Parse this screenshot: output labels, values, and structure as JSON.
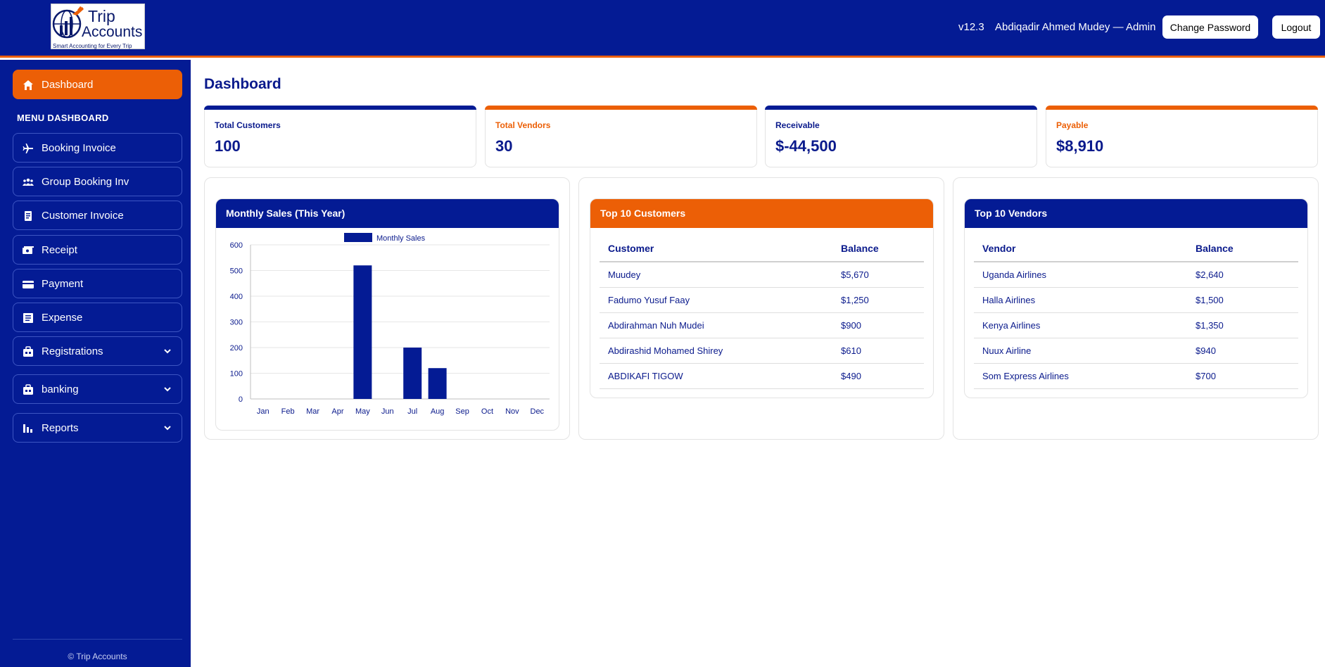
{
  "header": {
    "logo": {
      "line1": "Trip",
      "line2": "Accounts",
      "tagline": "Smart Accounting for Every Trip"
    },
    "version": "v12.3",
    "user": "Abdiqadir Ahmed Mudey — Admin",
    "change_password": "Change Password",
    "logout": "Logout"
  },
  "sidebar": {
    "active_item": "Dashboard",
    "menu_title": "MENU DASHBOARD",
    "items": [
      {
        "label": "Booking Invoice",
        "icon": "plane-icon"
      },
      {
        "label": "Group Booking Inv",
        "icon": "group-icon"
      },
      {
        "label": "Customer Invoice",
        "icon": "invoice-icon"
      },
      {
        "label": "Receipt",
        "icon": "receipt-icon"
      },
      {
        "label": "Payment",
        "icon": "card-icon"
      },
      {
        "label": "Expense",
        "icon": "expense-icon"
      },
      {
        "label": "Registrations",
        "icon": "briefcase-icon",
        "expandable": true
      },
      {
        "label": "banking",
        "icon": "bank-icon",
        "expandable": true
      },
      {
        "label": "Reports",
        "icon": "chart-icon",
        "expandable": true
      }
    ],
    "copyright": "© Trip Accounts"
  },
  "page": {
    "title": "Dashboard"
  },
  "stats": [
    {
      "label": "Total Customers",
      "value": "100",
      "accent": "#041b94"
    },
    {
      "label": "Total Vendors",
      "value": "30",
      "accent": "#ec5f06"
    },
    {
      "label": "Receivable",
      "value": "$-44,500",
      "accent": "#041b94"
    },
    {
      "label": "Payable",
      "value": "$8,910",
      "accent": "#ec5f06"
    }
  ],
  "sales_panel": {
    "title": "Monthly Sales (This Year)"
  },
  "customers_panel": {
    "title": "Top 10 Customers",
    "columns": [
      "Customer",
      "Balance"
    ],
    "rows": [
      [
        "Muudey",
        "$5,670"
      ],
      [
        "Fadumo Yusuf Faay",
        "$1,250"
      ],
      [
        "Abdirahman Nuh Mudei",
        "$900"
      ],
      [
        "Abdirashid Mohamed Shirey",
        "$610"
      ],
      [
        "ABDIKAFI TIGOW",
        "$490"
      ]
    ]
  },
  "vendors_panel": {
    "title": "Top 10 Vendors",
    "columns": [
      "Vendor",
      "Balance"
    ],
    "rows": [
      [
        "Uganda Airlines",
        "$2,640"
      ],
      [
        "Halla Airlines",
        "$1,500"
      ],
      [
        "Kenya Airlines",
        "$1,350"
      ],
      [
        "Nuux Airline",
        "$940"
      ],
      [
        "Som Express Airlines",
        "$700"
      ]
    ]
  },
  "colors": {
    "primary": "#041b94",
    "accent": "#ec5f06",
    "text": "#0a1a8c"
  },
  "chart_data": {
    "type": "bar",
    "categories": [
      "Jan",
      "Feb",
      "Mar",
      "Apr",
      "May",
      "Jun",
      "Jul",
      "Aug",
      "Sep",
      "Oct",
      "Nov",
      "Dec"
    ],
    "series": [
      {
        "name": "Monthly Sales",
        "values": [
          0,
          0,
          0,
          0,
          520,
          0,
          200,
          120,
          0,
          0,
          0,
          0
        ]
      }
    ],
    "yticks": [
      0,
      100,
      200,
      300,
      400,
      500,
      600
    ],
    "ylim": [
      0,
      600
    ],
    "legend": "top",
    "grid": true,
    "color": "#041b94"
  }
}
